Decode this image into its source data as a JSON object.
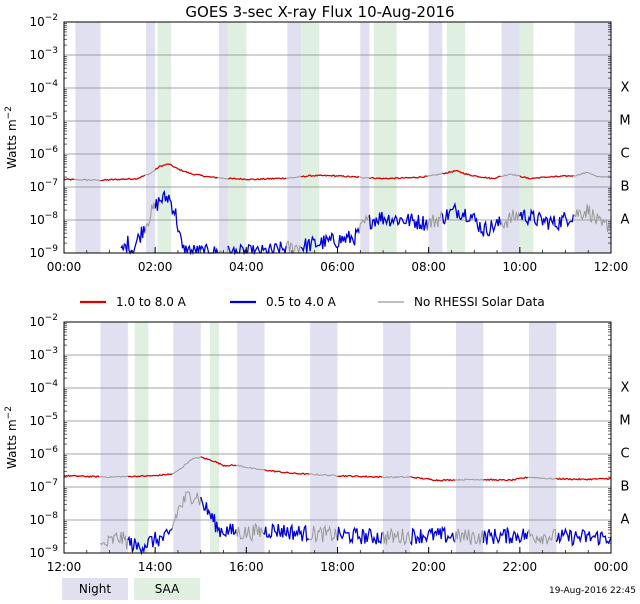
{
  "title": "GOES 3-sec X-ray Flux   10-Aug-2016",
  "ylabel_html": "Watts m-2",
  "ylabel_main": "Watts m",
  "ylabel_sup": "−2",
  "class_labels": [
    "X",
    "M",
    "C",
    "B",
    "A"
  ],
  "y_tick_exponents": [
    "−2",
    "−3",
    "−4",
    "−5",
    "−6",
    "−7",
    "−8",
    "−9"
  ],
  "legend": [
    {
      "label": "1.0 to 8.0 A",
      "color": "#dd0000"
    },
    {
      "label": "0.5 to 4.0 A",
      "color": "#0000dd"
    },
    {
      "label": "No RHESSI Solar Data",
      "color": "#999999"
    }
  ],
  "bottom_legend": {
    "night": "Night",
    "saa": "SAA"
  },
  "colors": {
    "night": "#e0e0f0",
    "saa": "#e0f0e0",
    "grid": "#888888",
    "long": "#dd0000",
    "short": "#0000dd",
    "norhessi": "#999999"
  },
  "stamp": "19-Aug-2016 22:45",
  "chart_data": [
    {
      "type": "line",
      "panel": "top",
      "x_ticks": [
        "00:00",
        "02:00",
        "04:00",
        "06:00",
        "08:00",
        "10:00",
        "12:00"
      ],
      "xlim_hours": [
        0,
        12
      ],
      "yscale": "log",
      "ylim": [
        1e-09,
        0.01
      ],
      "night_intervals": [
        [
          0.25,
          0.8
        ],
        [
          1.8,
          2.0
        ],
        [
          3.4,
          3.6
        ],
        [
          4.9,
          5.2
        ],
        [
          6.5,
          6.7
        ],
        [
          8.0,
          8.3
        ],
        [
          9.6,
          10.0
        ],
        [
          11.2,
          12.0
        ]
      ],
      "saa_intervals": [
        [
          2.05,
          2.35
        ],
        [
          3.6,
          4.0
        ],
        [
          5.2,
          5.6
        ],
        [
          6.8,
          7.3
        ],
        [
          8.4,
          8.8
        ],
        [
          10.0,
          10.3
        ]
      ],
      "series": [
        {
          "name": "1.0 to 8.0 A",
          "points": [
            [
              0,
              1.7e-07
            ],
            [
              0.8,
              1.6e-07
            ],
            [
              1.6,
              1.8e-07
            ],
            [
              1.9,
              2.6e-07
            ],
            [
              2.1,
              4.2e-07
            ],
            [
              2.3,
              5e-07
            ],
            [
              2.5,
              3.5e-07
            ],
            [
              2.8,
              2.5e-07
            ],
            [
              3.2,
              2e-07
            ],
            [
              3.6,
              1.8e-07
            ],
            [
              4.2,
              1.7e-07
            ],
            [
              5.0,
              1.9e-07
            ],
            [
              5.4,
              2.2e-07
            ],
            [
              5.9,
              2.2e-07
            ],
            [
              6.4,
              2e-07
            ],
            [
              7.0,
              1.8e-07
            ],
            [
              7.6,
              1.9e-07
            ],
            [
              8.0,
              2.1e-07
            ],
            [
              8.4,
              2.7e-07
            ],
            [
              8.6,
              3.1e-07
            ],
            [
              8.9,
              2.3e-07
            ],
            [
              9.4,
              1.8e-07
            ],
            [
              9.8,
              2.5e-07
            ],
            [
              10.2,
              1.8e-07
            ],
            [
              10.6,
              2e-07
            ],
            [
              11.2,
              2.2e-07
            ],
            [
              11.5,
              2.8e-07
            ],
            [
              11.7,
              2e-07
            ],
            [
              12,
              2.1e-07
            ]
          ]
        },
        {
          "name": "0.5 to 4.0 A",
          "points": [
            [
              1.25,
              1e-09
            ],
            [
              1.4,
              2e-09
            ],
            [
              1.5,
              1.2e-09
            ],
            [
              1.9,
              1.5e-08
            ],
            [
              2.1,
              4e-08
            ],
            [
              2.3,
              5e-08
            ],
            [
              2.45,
              1.5e-08
            ],
            [
              2.6,
              1.2e-09
            ],
            [
              3.2,
              1e-09
            ],
            [
              4.3,
              1e-09
            ],
            [
              6.4,
              3e-09
            ],
            [
              6.6,
              8e-09
            ],
            [
              6.9,
              1.2e-08
            ],
            [
              7.5,
              1e-08
            ],
            [
              8.0,
              8e-09
            ],
            [
              8.3,
              1.2e-08
            ],
            [
              8.6,
              2e-08
            ],
            [
              8.9,
              1.5e-08
            ],
            [
              9.2,
              5e-09
            ],
            [
              9.6,
              8e-09
            ],
            [
              10.0,
              1.5e-08
            ],
            [
              10.4,
              1e-08
            ],
            [
              10.8,
              8e-09
            ],
            [
              11.2,
              1.5e-08
            ],
            [
              11.5,
              2e-08
            ],
            [
              11.8,
              6e-09
            ],
            [
              12,
              8e-09
            ]
          ]
        }
      ]
    },
    {
      "type": "line",
      "panel": "bottom",
      "x_ticks": [
        "12:00",
        "14:00",
        "16:00",
        "18:00",
        "20:00",
        "22:00",
        "00:00"
      ],
      "xlim_hours": [
        12,
        24
      ],
      "yscale": "log",
      "ylim": [
        1e-09,
        0.01
      ],
      "night_intervals": [
        [
          12.8,
          13.4
        ],
        [
          14.4,
          15.0
        ],
        [
          15.8,
          16.4
        ],
        [
          17.4,
          18.0
        ],
        [
          19.0,
          19.6
        ],
        [
          20.6,
          21.2
        ],
        [
          22.2,
          22.8
        ]
      ],
      "saa_intervals": [
        [
          13.55,
          13.85
        ],
        [
          15.2,
          15.4
        ]
      ],
      "series": [
        {
          "name": "1.0 to 8.0 A",
          "points": [
            [
              12,
              2.2e-07
            ],
            [
              13.0,
              2e-07
            ],
            [
              14.0,
              2.2e-07
            ],
            [
              14.4,
              2.5e-07
            ],
            [
              14.6,
              4e-07
            ],
            [
              14.8,
              7e-07
            ],
            [
              15.0,
              8e-07
            ],
            [
              15.3,
              6e-07
            ],
            [
              15.5,
              4.5e-07
            ],
            [
              15.8,
              4.5e-07
            ],
            [
              16.2,
              3.5e-07
            ],
            [
              17.0,
              2.6e-07
            ],
            [
              18.0,
              2.2e-07
            ],
            [
              19.0,
              2e-07
            ],
            [
              19.6,
              2e-07
            ],
            [
              20.2,
              1.6e-07
            ],
            [
              21.0,
              1.7e-07
            ],
            [
              21.8,
              1.6e-07
            ],
            [
              22.2,
              2e-07
            ],
            [
              22.6,
              1.8e-07
            ],
            [
              23.4,
              1.7e-07
            ],
            [
              24,
              1.8e-07
            ]
          ]
        },
        {
          "name": "0.5 to 4.0 A",
          "points": [
            [
              12.8,
              1.5e-09
            ],
            [
              13.2,
              3e-09
            ],
            [
              13.6,
              1.5e-09
            ],
            [
              14.0,
              2.5e-09
            ],
            [
              14.3,
              3e-09
            ],
            [
              14.5,
              2e-08
            ],
            [
              14.7,
              5e-08
            ],
            [
              14.9,
              6e-08
            ],
            [
              15.2,
              1.5e-08
            ],
            [
              15.4,
              5e-09
            ],
            [
              16.0,
              4e-09
            ],
            [
              16.6,
              5e-09
            ],
            [
              17.2,
              4e-09
            ],
            [
              18.0,
              3.5e-09
            ],
            [
              19.0,
              3e-09
            ],
            [
              20.0,
              3.5e-09
            ],
            [
              21.0,
              3e-09
            ],
            [
              22.0,
              3.5e-09
            ],
            [
              23.0,
              3e-09
            ],
            [
              24,
              3e-09
            ]
          ]
        }
      ]
    }
  ]
}
